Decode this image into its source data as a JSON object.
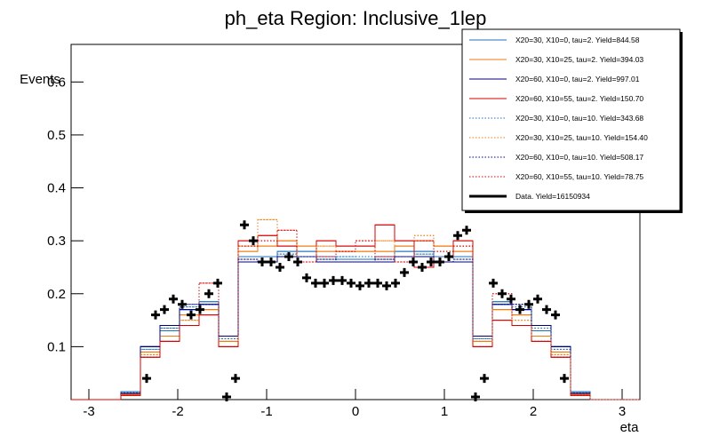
{
  "chart_data": {
    "type": "histogram",
    "title": "ph_eta Region: Inclusive_1lep",
    "xlabel": "eta",
    "ylabel": "Events",
    "xlim": [
      -3.2,
      3.2
    ],
    "ylim": [
      0,
      0.671
    ],
    "xticks": [
      -3,
      -2,
      -1,
      0,
      1,
      2,
      3
    ],
    "yticks": [
      0.1,
      0.2,
      0.3,
      0.4,
      0.5,
      0.6
    ],
    "legend": "top-right",
    "bins": [
      -2.64,
      -2.42,
      -2.2,
      -1.98,
      -1.76,
      -1.54,
      -1.32,
      -1.1,
      -0.88,
      -0.66,
      -0.44,
      -0.22,
      0,
      0.22,
      0.44,
      0.66,
      0.88,
      1.1,
      1.32,
      1.54,
      1.76,
      1.98,
      2.2,
      2.42,
      2.64
    ],
    "series": [
      {
        "name": "X20=30, X10=0, tau=2. Yield=844.58",
        "color": "#1f6fbf",
        "style": "solid",
        "values": [
          0.015,
          0.1,
          0.13,
          0.17,
          0.185,
          0.12,
          0.27,
          0.27,
          0.28,
          0.28,
          0.27,
          0.265,
          0.265,
          0.27,
          0.28,
          0.28,
          0.27,
          0.27,
          0.12,
          0.185,
          0.17,
          0.13,
          0.1,
          0.015
        ]
      },
      {
        "name": "X20=30, X10=25, tau=2. Yield=394.03",
        "color": "#f07a10",
        "style": "solid",
        "values": [
          0.01,
          0.09,
          0.12,
          0.16,
          0.17,
          0.11,
          0.28,
          0.29,
          0.3,
          0.29,
          0.28,
          0.28,
          0.28,
          0.28,
          0.29,
          0.3,
          0.29,
          0.28,
          0.11,
          0.17,
          0.16,
          0.12,
          0.09,
          0.01
        ]
      },
      {
        "name": "X20=60, X10=0, tau=2. Yield=997.01",
        "color": "#00007f",
        "style": "solid",
        "values": [
          0.012,
          0.1,
          0.14,
          0.17,
          0.18,
          0.12,
          0.26,
          0.26,
          0.27,
          0.27,
          0.26,
          0.26,
          0.26,
          0.26,
          0.27,
          0.27,
          0.26,
          0.26,
          0.12,
          0.18,
          0.17,
          0.14,
          0.1,
          0.012
        ]
      },
      {
        "name": "X20=60, X10=55, tau=2. Yield=150.70",
        "color": "#d40000",
        "style": "solid",
        "values": [
          0.008,
          0.08,
          0.11,
          0.14,
          0.16,
          0.1,
          0.3,
          0.31,
          0.29,
          0.27,
          0.3,
          0.29,
          0.29,
          0.33,
          0.3,
          0.25,
          0.27,
          0.3,
          0.1,
          0.15,
          0.14,
          0.11,
          0.08,
          0.008
        ]
      },
      {
        "name": "X20=30, X10=0, tau=10. Yield=343.68",
        "color": "#1f6fbf",
        "style": "dotted",
        "values": [
          0.013,
          0.095,
          0.135,
          0.175,
          0.18,
          0.115,
          0.265,
          0.27,
          0.275,
          0.27,
          0.265,
          0.27,
          0.27,
          0.265,
          0.27,
          0.275,
          0.27,
          0.265,
          0.115,
          0.18,
          0.175,
          0.135,
          0.095,
          0.013
        ]
      },
      {
        "name": "X20=30, X10=25, tau=10. Yield=154.40",
        "color": "#f07a10",
        "style": "dotted",
        "values": [
          0.01,
          0.085,
          0.12,
          0.15,
          0.17,
          0.11,
          0.29,
          0.34,
          0.3,
          0.27,
          0.29,
          0.28,
          0.28,
          0.3,
          0.27,
          0.31,
          0.29,
          0.29,
          0.11,
          0.17,
          0.15,
          0.12,
          0.085,
          0.01
        ]
      },
      {
        "name": "X20=60, X10=0, tau=10. Yield=508.17",
        "color": "#00007f",
        "style": "dotted",
        "values": [
          0.012,
          0.1,
          0.14,
          0.18,
          0.18,
          0.12,
          0.265,
          0.26,
          0.27,
          0.27,
          0.265,
          0.26,
          0.26,
          0.265,
          0.27,
          0.27,
          0.26,
          0.265,
          0.12,
          0.18,
          0.18,
          0.14,
          0.1,
          0.012
        ]
      },
      {
        "name": "X20=60, X10=55, tau=10. Yield=78.75",
        "color": "#d40000",
        "style": "dotted",
        "values": [
          0.008,
          0.08,
          0.11,
          0.14,
          0.22,
          0.1,
          0.29,
          0.3,
          0.32,
          0.26,
          0.27,
          0.28,
          0.3,
          0.27,
          0.26,
          0.3,
          0.28,
          0.29,
          0.1,
          0.2,
          0.14,
          0.11,
          0.08,
          0.008
        ]
      }
    ],
    "data_points": {
      "name": "Data. Yield=16150934",
      "color": "#000000",
      "x": [
        -2.35,
        -2.25,
        -2.15,
        -2.05,
        -1.95,
        -1.85,
        -1.75,
        -1.65,
        -1.55,
        -1.45,
        -1.35,
        -1.25,
        -1.15,
        -1.05,
        -0.95,
        -0.85,
        -0.75,
        -0.65,
        -0.55,
        -0.45,
        -0.35,
        -0.25,
        -0.15,
        -0.05,
        0.05,
        0.15,
        0.25,
        0.35,
        0.45,
        0.55,
        0.65,
        0.75,
        0.85,
        0.95,
        1.05,
        1.15,
        1.25,
        1.35,
        1.45,
        1.55,
        1.65,
        1.75,
        1.85,
        1.95,
        2.05,
        2.15,
        2.25,
        2.35
      ],
      "values": [
        0.04,
        0.16,
        0.17,
        0.19,
        0.18,
        0.16,
        0.17,
        0.2,
        0.22,
        0.005,
        0.04,
        0.33,
        0.3,
        0.26,
        0.26,
        0.25,
        0.27,
        0.26,
        0.23,
        0.22,
        0.22,
        0.225,
        0.225,
        0.22,
        0.215,
        0.22,
        0.22,
        0.215,
        0.22,
        0.24,
        0.26,
        0.25,
        0.26,
        0.26,
        0.27,
        0.31,
        0.32,
        0.005,
        0.04,
        0.22,
        0.2,
        0.19,
        0.17,
        0.18,
        0.19,
        0.17,
        0.16,
        0.04
      ]
    }
  }
}
